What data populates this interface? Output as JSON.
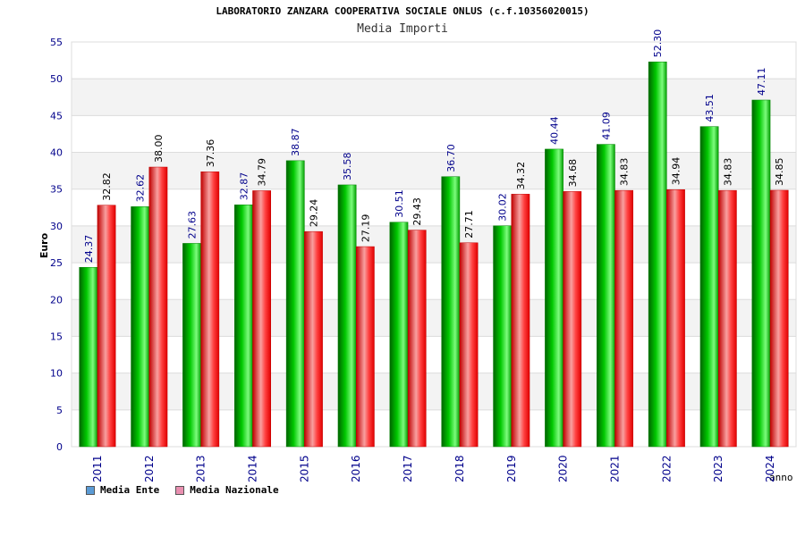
{
  "header": {
    "title": "LABORATORIO ZANZARA COOPERATIVA SOCIALE ONLUS (c.f.10356020015)",
    "subtitle": "Media Importi"
  },
  "legend": [
    {
      "label": "Media Ente",
      "color": "#5b9bd5"
    },
    {
      "label": "Media Nazionale",
      "color": "#e98fb0"
    }
  ],
  "colors": {
    "ente_bar": "#00b400",
    "nazionale_bar": "#ff1010",
    "axis_text": "#00008b"
  },
  "chart_data": {
    "type": "bar",
    "ylabel": "Euro",
    "xlabel": "anno",
    "ylim": [
      0,
      55
    ],
    "yticks": [
      0,
      5,
      10,
      15,
      20,
      25,
      30,
      35,
      40,
      45,
      50,
      55
    ],
    "grid": true,
    "categories": [
      "2011",
      "2012",
      "2013",
      "2014",
      "2015",
      "2016",
      "2017",
      "2018",
      "2019",
      "2020",
      "2021",
      "2022",
      "2023",
      "2024"
    ],
    "series": [
      {
        "name": "Media Ente",
        "values": [
          24.37,
          32.62,
          27.63,
          32.87,
          38.87,
          35.58,
          30.51,
          36.7,
          30.02,
          40.44,
          41.09,
          52.3,
          43.51,
          47.11
        ],
        "labels": [
          "24.37",
          "32.62",
          "27.63",
          "32.87",
          "38.87",
          "35.58",
          "30.51",
          "36.70",
          "30.02",
          "40.44",
          "41.09",
          "52.30",
          "43.51",
          "47.11"
        ]
      },
      {
        "name": "Media Nazionale",
        "values": [
          32.82,
          38.0,
          37.36,
          34.79,
          29.24,
          27.19,
          29.43,
          27.71,
          34.32,
          34.68,
          34.83,
          34.94,
          34.83,
          34.85
        ],
        "labels": [
          "32.82",
          "38.00",
          "37.36",
          "34.79",
          "29.24",
          "27.19",
          "29.43",
          "27.71",
          "34.32",
          "34.68",
          "34.83",
          "34.94",
          "34.83",
          "34.85"
        ]
      }
    ]
  }
}
